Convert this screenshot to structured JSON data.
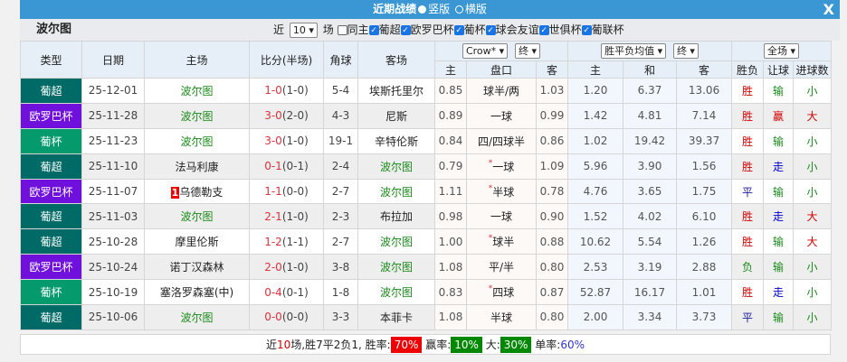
{
  "titlebar": {
    "title": "近期战绩",
    "opt1": "竖版",
    "opt2": "横版",
    "close": "X"
  },
  "sub": {
    "team": "波尔图",
    "near": "近",
    "count": "10",
    "unit": "场",
    "filters": [
      {
        "label": "同主",
        "checked": false
      },
      {
        "label": "葡超",
        "checked": true
      },
      {
        "label": "欧罗巴杯",
        "checked": true
      },
      {
        "label": "葡杯",
        "checked": true
      },
      {
        "label": "球会友谊",
        "checked": true
      },
      {
        "label": "世俱杯",
        "checked": true
      },
      {
        "label": "葡联杯",
        "checked": true
      }
    ]
  },
  "header": {
    "type": "类型",
    "date": "日期",
    "home": "主场",
    "score": "比分(半场)",
    "corner": "角球",
    "away": "客场",
    "asian_company": "Crow*",
    "asian_stage": "终",
    "euro_company": "胜平负均值",
    "euro_stage": "终",
    "result_scope": "全场",
    "a_home": "主",
    "a_line": "盘口",
    "a_away": "客",
    "e_home": "主",
    "e_draw": "和",
    "e_away": "客",
    "wl": "胜负",
    "hcp": "让球",
    "goals": "进球数"
  },
  "type_colors": {
    "葡超": "#006a66",
    "欧罗巴杯": "#7010dd",
    "葡杯": "#049a6c"
  },
  "rows": [
    {
      "type": "葡超",
      "date": "25-12-01",
      "home": "波尔图",
      "ft": "1-0",
      "ht": "(1-0)",
      "corner": "5-4",
      "away": "埃斯托里尔",
      "ah": "0.85",
      "line": "球半/两",
      "star": false,
      "aa": "1.03",
      "eh": "1.20",
      "ed": "6.37",
      "ea": "13.06",
      "wl": "胜",
      "hcp": "输",
      "goals": "小"
    },
    {
      "type": "欧罗巴杯",
      "date": "25-11-28",
      "home": "波尔图",
      "ft": "3-0",
      "ht": "(2-0)",
      "corner": "4-3",
      "away": "尼斯",
      "ah": "0.89",
      "line": "一球",
      "star": false,
      "aa": "0.99",
      "eh": "1.42",
      "ed": "4.81",
      "ea": "7.14",
      "wl": "胜",
      "hcp": "赢",
      "goals": "大"
    },
    {
      "type": "葡杯",
      "date": "25-11-23",
      "home": "波尔图",
      "ft": "3-0",
      "ht": "(1-0)",
      "corner": "19-1",
      "away": "辛特伦斯",
      "ah": "0.84",
      "line": "四/四球半",
      "star": false,
      "aa": "0.86",
      "eh": "1.02",
      "ed": "19.42",
      "ea": "39.37",
      "wl": "胜",
      "hcp": "输",
      "goals": "小"
    },
    {
      "type": "葡超",
      "date": "25-11-10",
      "home": "法马利康",
      "ft": "0-1",
      "ht": "(0-1)",
      "corner": "2-4",
      "away": "波尔图",
      "ah": "0.79",
      "line": "一球",
      "star": true,
      "aa": "1.09",
      "eh": "5.96",
      "ed": "3.90",
      "ea": "1.56",
      "wl": "胜",
      "hcp": "走",
      "goals": "小"
    },
    {
      "type": "欧罗巴杯",
      "date": "25-11-07",
      "home": "乌德勒支",
      "home_rank": "1",
      "ft": "1-1",
      "ht": "(0-0)",
      "corner": "2-7",
      "away": "波尔图",
      "ah": "1.11",
      "line": "半球",
      "star": true,
      "aa": "0.78",
      "eh": "4.76",
      "ed": "3.65",
      "ea": "1.75",
      "wl": "平",
      "hcp": "输",
      "goals": "小"
    },
    {
      "type": "葡超",
      "date": "25-11-03",
      "home": "波尔图",
      "ft": "2-1",
      "ht": "(1-0)",
      "corner": "2-3",
      "away": "布拉加",
      "ah": "0.98",
      "line": "一球",
      "star": false,
      "aa": "0.90",
      "eh": "1.52",
      "ed": "4.02",
      "ea": "6.10",
      "wl": "胜",
      "hcp": "走",
      "goals": "大"
    },
    {
      "type": "葡超",
      "date": "25-10-28",
      "home": "摩里伦斯",
      "ft": "1-2",
      "ht": "(1-1)",
      "corner": "2-7",
      "away": "波尔图",
      "ah": "1.00",
      "line": "球半",
      "star": true,
      "aa": "0.88",
      "eh": "10.62",
      "ed": "5.54",
      "ea": "1.26",
      "wl": "胜",
      "hcp": "输",
      "goals": "大"
    },
    {
      "type": "欧罗巴杯",
      "date": "25-10-24",
      "home": "诺丁汉森林",
      "ft": "2-0",
      "ht": "(1-0)",
      "corner": "3-8",
      "away": "波尔图",
      "ah": "1.08",
      "line": "平/半",
      "star": false,
      "aa": "0.80",
      "eh": "2.53",
      "ed": "3.19",
      "ea": "2.88",
      "wl": "负",
      "hcp": "输",
      "goals": "小"
    },
    {
      "type": "葡杯",
      "date": "25-10-19",
      "home": "塞洛罗森塞(中)",
      "ft": "0-4",
      "ht": "(0-1)",
      "corner": "1-8",
      "away": "波尔图",
      "ah": "0.83",
      "line": "四球",
      "star": true,
      "aa": "0.87",
      "eh": "52.87",
      "ed": "16.17",
      "ea": "1.01",
      "wl": "胜",
      "hcp": "走",
      "goals": "小"
    },
    {
      "type": "葡超",
      "date": "25-10-06",
      "home": "波尔图",
      "ft": "0-0",
      "ht": "(0-0)",
      "corner": "3-3",
      "away": "本菲卡",
      "ah": "1.08",
      "line": "半球",
      "star": false,
      "aa": "0.80",
      "eh": "2.00",
      "ed": "3.34",
      "ea": "3.73",
      "wl": "平",
      "hcp": "输",
      "goals": "小"
    }
  ],
  "footer": {
    "p1": "近",
    "n": "10",
    "p2": "场,胜7平2负1, 胜率:",
    "win_rate": "70%",
    "l2": "赢率:",
    "hcp_rate": "10%",
    "l3": "大:",
    "over_rate": "30%",
    "l4": "单率:",
    "odd_rate": "60%"
  }
}
